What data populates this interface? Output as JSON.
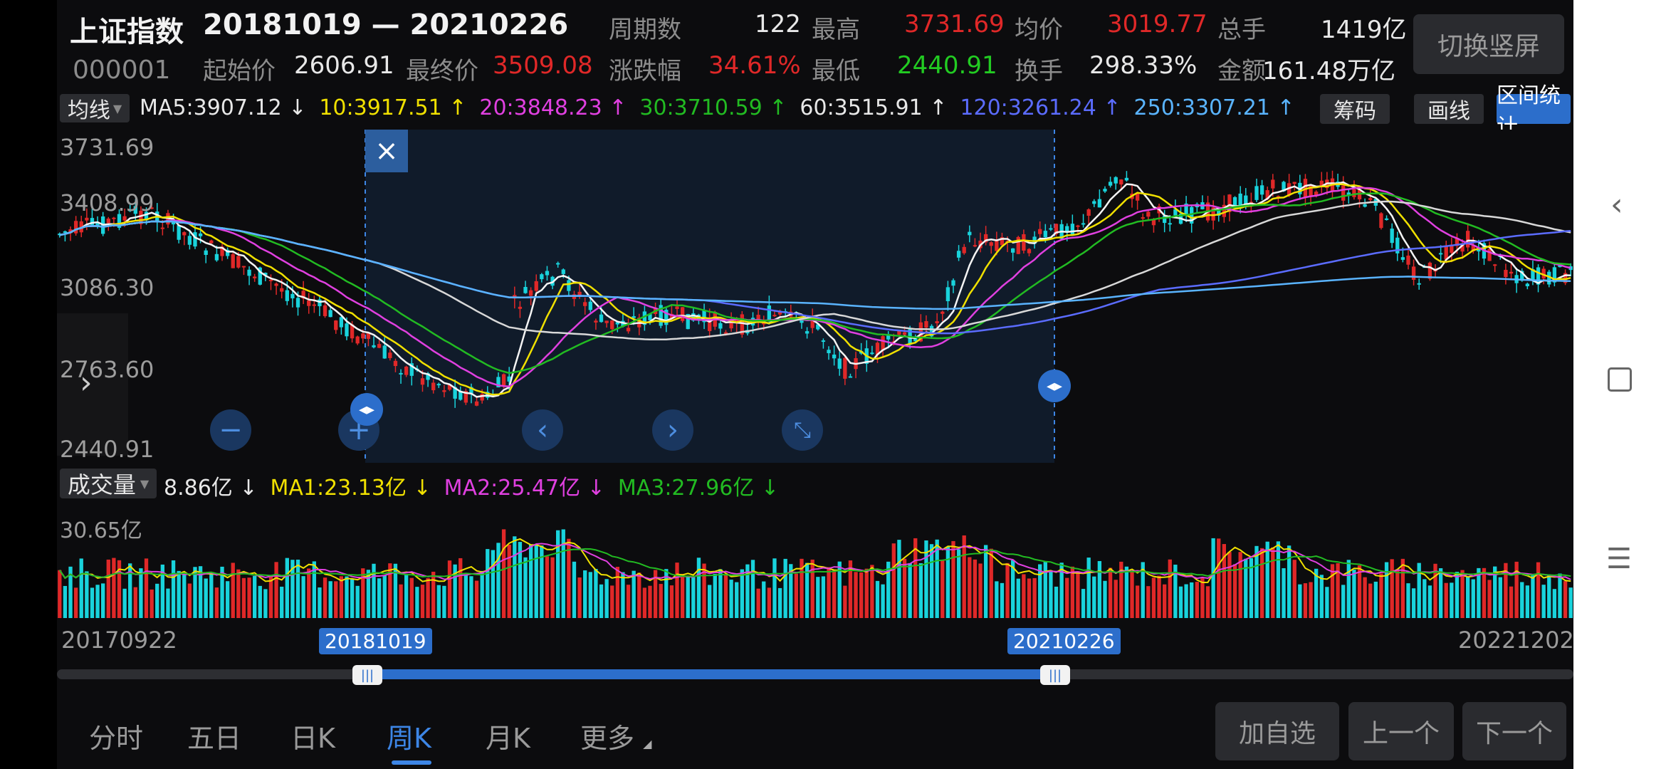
{
  "header": {
    "index_name": "上证指数",
    "range": "20181019 — 20210226",
    "code": "000001",
    "stats": {
      "periods_label": "周期数",
      "periods_value": "122",
      "high_label": "最高",
      "high_value": "3731.69",
      "avg_label": "均价",
      "avg_value": "3019.77",
      "total_vol_label": "总手",
      "total_vol_value": "1419亿",
      "start_label": "起始价",
      "start_value": "2606.91",
      "end_label": "最终价",
      "end_value": "3509.08",
      "change_label": "涨跌幅",
      "change_value": "34.61%",
      "low_label": "最低",
      "low_value": "2440.91",
      "turnover_label": "换手",
      "turnover_value": "298.33%",
      "amount_label": "金额",
      "amount_value": "161.48万亿"
    },
    "switch_button": "切换竖屏"
  },
  "ma_bar": {
    "selector": "均线",
    "items": [
      {
        "text": "MA5:3907.12 ↓",
        "color": "#e8e8e8"
      },
      {
        "text": "10:3917.51 ↑",
        "color": "#f0e000"
      },
      {
        "text": "20:3848.23 ↑",
        "color": "#e040e0"
      },
      {
        "text": "30:3710.59 ↑",
        "color": "#22bb22"
      },
      {
        "text": "60:3515.91 ↑",
        "color": "#e8e8e8"
      },
      {
        "text": "120:3261.24 ↑",
        "color": "#5b6cff"
      },
      {
        "text": "250:3307.21 ↑",
        "color": "#5ab4ff"
      }
    ],
    "chip_chouma": "筹码",
    "chip_huaxian": "画线",
    "chip_range": "区间统计"
  },
  "price_axis": [
    "3731.69",
    "3408.99",
    "3086.30",
    "2763.60",
    "2440.91"
  ],
  "close_x": "×",
  "volume_bar": {
    "selector": "成交量",
    "items": [
      {
        "text": "8.86亿 ↓",
        "color": "#e8e8e8"
      },
      {
        "text": "MA1:23.13亿 ↓",
        "color": "#f0e000"
      },
      {
        "text": "MA2:25.47亿 ↓",
        "color": "#e040e0"
      },
      {
        "text": "MA3:27.96亿 ↓",
        "color": "#22bb22"
      }
    ],
    "axis_top": "30.65亿"
  },
  "timeline": {
    "start": "20170922",
    "range_start": "20181019",
    "range_end": "20210226",
    "end": "20221202"
  },
  "tabs": [
    "分时",
    "五日",
    "日K",
    "周K",
    "月K",
    "更多"
  ],
  "active_tab": 3,
  "actions": {
    "add": "加自选",
    "prev": "上一个",
    "next": "下一个"
  },
  "colors": {
    "up": "#e02828",
    "down": "#19d3dc",
    "accent": "#2c6ecb"
  }
}
